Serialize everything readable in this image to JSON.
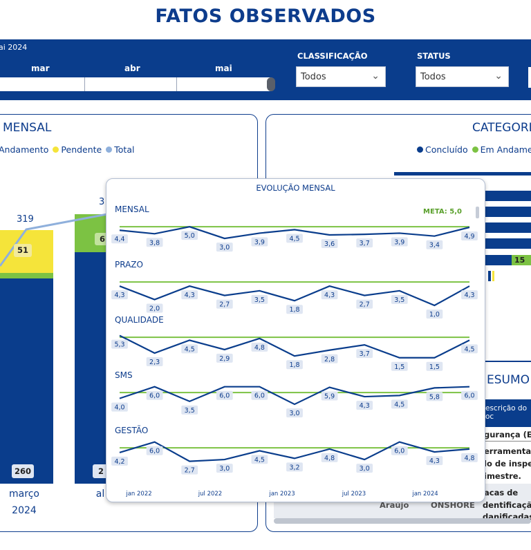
{
  "page_title": "FATOS OBSERVADOS",
  "filters": {
    "date_range_text": "ai 2024",
    "months": [
      "mar",
      "abr",
      "mai"
    ],
    "classificacao": {
      "label": "CLASSIFICAÇÃO",
      "value": "Todos"
    },
    "status": {
      "label": "STATUS",
      "value": "Todos"
    }
  },
  "left_panel": {
    "title": "MENSAL",
    "legend": [
      {
        "label": "Andamento",
        "color": "#7cc243"
      },
      {
        "label": "Pendente",
        "color": "#f5e43a"
      },
      {
        "label": "Total",
        "color": "#8fb0dc"
      }
    ],
    "bars": [
      {
        "month": "março",
        "year": "2024",
        "total_label": "319",
        "pendente_label": "51",
        "concluido_label": "260"
      },
      {
        "month": "al",
        "year": "",
        "total_label": "3",
        "andamento_label": "6",
        "concluido_label": "2"
      }
    ]
  },
  "right_panel": {
    "title": "CATEGORIA",
    "legend": [
      {
        "label": "Concluído",
        "color": "#0a3d8c"
      },
      {
        "label": "Em Andament",
        "color": "#7cc243"
      }
    ],
    "andamento_label": "15"
  },
  "resumo": {
    "title": "ESUMO",
    "header": "escrição do oc",
    "lines": [
      "gurança (EF",
      "erramenta se",
      "lo de inspec",
      "imestre.",
      "acas de",
      "dentificação",
      "danificadas"
    ],
    "bottom_fragments": [
      "Araújo",
      "ONSHORE"
    ]
  },
  "popup": {
    "title": "EVOLUÇÃO MENSAL",
    "meta_label": "META: 5,0",
    "x_ticks": [
      "jan 2022",
      "jul 2022",
      "jan 2023",
      "jul 2023",
      "jan 2024"
    ],
    "series": [
      {
        "name": "MENSAL",
        "labels": [
          "4,4",
          "3,8",
          "5,0",
          "3,0",
          "3,9",
          "4,5",
          "3,6",
          "3,7",
          "3,9",
          "3,4",
          "4,9"
        ]
      },
      {
        "name": "PRAZO",
        "labels": [
          "4,3",
          "2,0",
          "4,3",
          "2,7",
          "3,5",
          "1,8",
          "4,3",
          "2,7",
          "3,5",
          "1,0",
          "4,3"
        ]
      },
      {
        "name": "QUALIDADE",
        "labels": [
          "5,3",
          "2,3",
          "4,5",
          "2,9",
          "4,8",
          "1,8",
          "2,8",
          "3,7",
          "1,5",
          "1,5",
          "4,5"
        ]
      },
      {
        "name": "SMS",
        "labels": [
          "4,0",
          "6,0",
          "3,5",
          "6,0",
          "6,0",
          "3,0",
          "5,9",
          "4,3",
          "4,5",
          "5,8",
          "6,0"
        ]
      },
      {
        "name": "GESTÃO",
        "labels": [
          "4,2",
          "6,0",
          "2,7",
          "3,0",
          "4,5",
          "3,2",
          "4,8",
          "3,0",
          "6,0",
          "4,3",
          "4,8"
        ]
      }
    ]
  }
}
